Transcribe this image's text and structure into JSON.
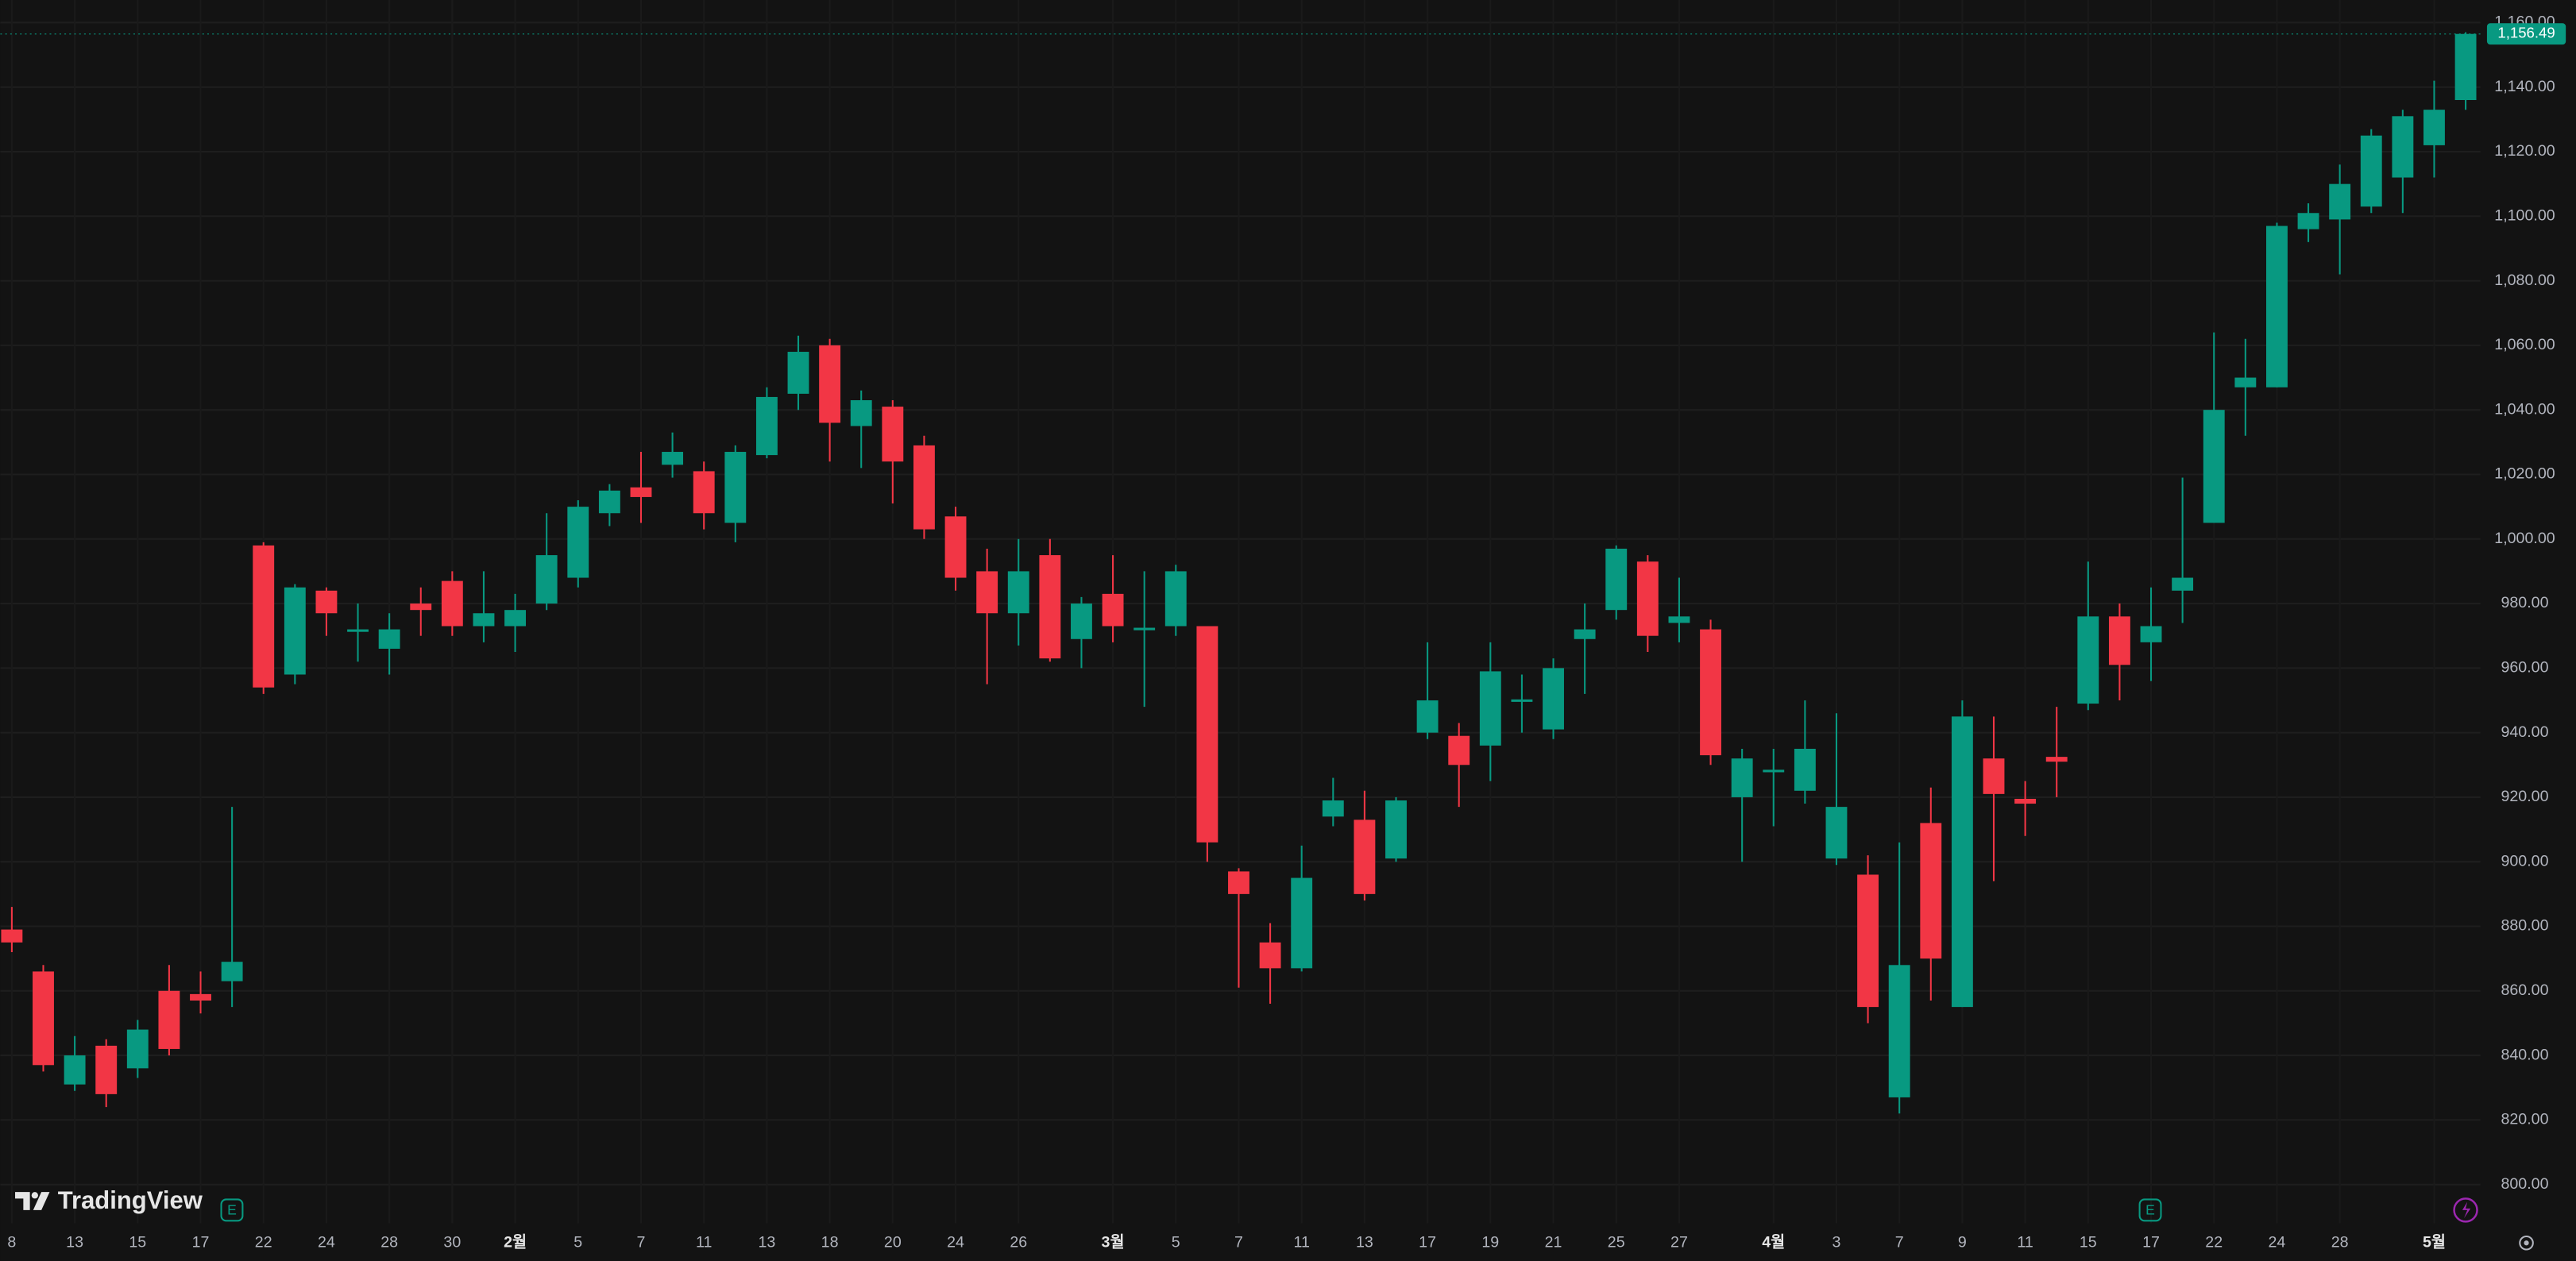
{
  "chart_data": {
    "type": "candlestick",
    "categories": [
      "8",
      null,
      "13",
      null,
      "15",
      null,
      "17",
      null,
      "22",
      null,
      "24",
      null,
      "28",
      null,
      "30",
      null,
      "2월",
      null,
      "5",
      null,
      "7",
      null,
      "11",
      null,
      "13",
      null,
      "18",
      null,
      "20",
      null,
      "24",
      null,
      "26",
      null,
      null,
      "3월",
      null,
      "5",
      null,
      "7",
      null,
      "11",
      null,
      "13",
      null,
      "17",
      null,
      "19",
      null,
      "21",
      null,
      "25",
      null,
      "27",
      null,
      null,
      "4월",
      null,
      "3",
      null,
      "7",
      null,
      "9",
      null,
      "11",
      null,
      "15",
      null,
      "17",
      null,
      "22",
      null,
      "24",
      null,
      "28",
      null,
      null,
      "5월",
      null
    ],
    "open": [
      879,
      866,
      831,
      843,
      836,
      860,
      859,
      863,
      998,
      958,
      984,
      971.5,
      966,
      980,
      987,
      973,
      973,
      980,
      988,
      1008,
      1016,
      1023,
      1021,
      1005,
      1026,
      1045,
      1060,
      1035,
      1041,
      1029,
      1007,
      990,
      977,
      995,
      969,
      983,
      972,
      973,
      973,
      897,
      875,
      867,
      914,
      913,
      901,
      940,
      939,
      936,
      950,
      941,
      969,
      978,
      993,
      974,
      972,
      920,
      928,
      922,
      901,
      896,
      827,
      912,
      855,
      932,
      919.5,
      932.5,
      949,
      976,
      968,
      984,
      1005,
      1047,
      1047,
      1096,
      1099,
      1103,
      1112,
      1122,
      1136
    ],
    "high": [
      886,
      868,
      846,
      845,
      851,
      868,
      866,
      917,
      999,
      986,
      985,
      980,
      977,
      985,
      990,
      990,
      983,
      1008,
      1012,
      1017,
      1027,
      1033,
      1024,
      1029,
      1047,
      1063,
      1062,
      1046,
      1043,
      1032,
      1010,
      997,
      1000,
      1000,
      982,
      995,
      990,
      992,
      973,
      898,
      881,
      905,
      926,
      922,
      920,
      968,
      943,
      968,
      958,
      963,
      980,
      998,
      995,
      988,
      975,
      935,
      935,
      950,
      946,
      902,
      906,
      923,
      950,
      945,
      925,
      948,
      993,
      980,
      985,
      1019,
      1064,
      1062,
      1098,
      1104,
      1116,
      1127,
      1133,
      1142,
      1157
    ],
    "low": [
      872,
      835,
      829,
      824,
      833,
      840,
      853,
      855,
      952,
      955,
      970,
      962,
      958,
      970,
      970,
      968,
      965,
      978,
      985,
      1004,
      1005,
      1019,
      1003,
      999,
      1025,
      1040,
      1024,
      1022,
      1011,
      1000,
      984,
      955,
      967,
      962,
      960,
      968,
      948,
      970,
      900,
      861,
      856,
      866,
      911,
      888,
      900,
      938,
      917,
      925,
      940,
      938,
      952,
      975,
      965,
      968,
      930,
      900,
      911,
      918,
      899,
      850,
      822,
      857,
      855,
      894,
      908,
      920,
      947,
      950,
      956,
      974,
      1005,
      1032,
      1047,
      1092,
      1082,
      1101,
      1101,
      1112,
      1133
    ],
    "close": [
      875,
      837,
      840,
      828,
      848,
      842,
      857,
      869,
      954,
      985,
      977,
      972,
      972,
      978,
      973,
      977,
      978,
      995,
      1010,
      1015,
      1013,
      1027,
      1008,
      1027,
      1044,
      1058,
      1036,
      1043,
      1024,
      1003,
      988,
      977,
      990,
      963,
      980,
      973,
      972.5,
      990,
      906,
      890,
      867,
      895,
      919,
      890,
      919,
      950,
      930,
      959,
      950.3,
      960,
      972,
      997,
      970,
      976,
      933,
      932,
      928.5,
      935,
      917,
      855,
      868,
      870,
      945,
      921,
      918,
      931,
      976,
      961,
      973,
      988,
      1040,
      1050,
      1097,
      1101,
      1110,
      1125,
      1131,
      1133,
      1156.49
    ],
    "up_color": "#089981",
    "down_color": "#f23645",
    "ylim": [
      788,
      1167
    ],
    "yticks": [
      {
        "value": 800,
        "label": "800.00"
      },
      {
        "value": 820,
        "label": "820.00"
      },
      {
        "value": 840,
        "label": "840.00"
      },
      {
        "value": 860,
        "label": "860.00"
      },
      {
        "value": 880,
        "label": "880.00"
      },
      {
        "value": 900,
        "label": "900.00"
      },
      {
        "value": 920,
        "label": "920.00"
      },
      {
        "value": 940,
        "label": "940.00"
      },
      {
        "value": 960,
        "label": "960.00"
      },
      {
        "value": 980,
        "label": "980.00"
      },
      {
        "value": 1000,
        "label": "1,000.00"
      },
      {
        "value": 1020,
        "label": "1,020.00"
      },
      {
        "value": 1040,
        "label": "1,040.00"
      },
      {
        "value": 1060,
        "label": "1,060.00"
      },
      {
        "value": 1080,
        "label": "1,080.00"
      },
      {
        "value": 1100,
        "label": "1,100.00"
      },
      {
        "value": 1120,
        "label": "1,120.00"
      },
      {
        "value": 1140,
        "label": "1,140.00"
      },
      {
        "value": 1160,
        "label": "1,160.00"
      }
    ],
    "grid": true,
    "last_price": {
      "value": 1156.49,
      "label": "1,156.49"
    },
    "event_markers": [
      "E",
      "E"
    ],
    "logo_text": "TradingView"
  }
}
